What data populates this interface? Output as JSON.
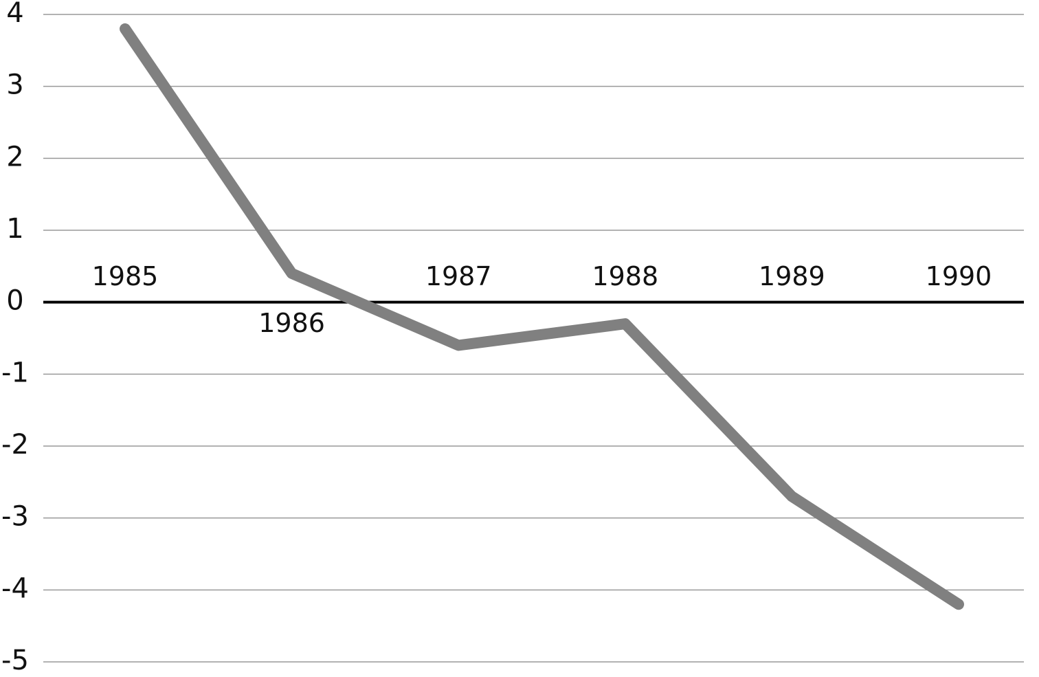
{
  "chart_data": {
    "type": "line",
    "categories": [
      "1985",
      "1986",
      "1987",
      "1988",
      "1989",
      "1990"
    ],
    "values": [
      3.8,
      0.4,
      -0.6,
      -0.3,
      -2.7,
      -4.2
    ],
    "color": "#808080",
    "ylim": [
      -5,
      4
    ],
    "yticks": [
      -5,
      -4,
      -3,
      -2,
      -1,
      0,
      1,
      2,
      3,
      4
    ],
    "grid": true
  }
}
